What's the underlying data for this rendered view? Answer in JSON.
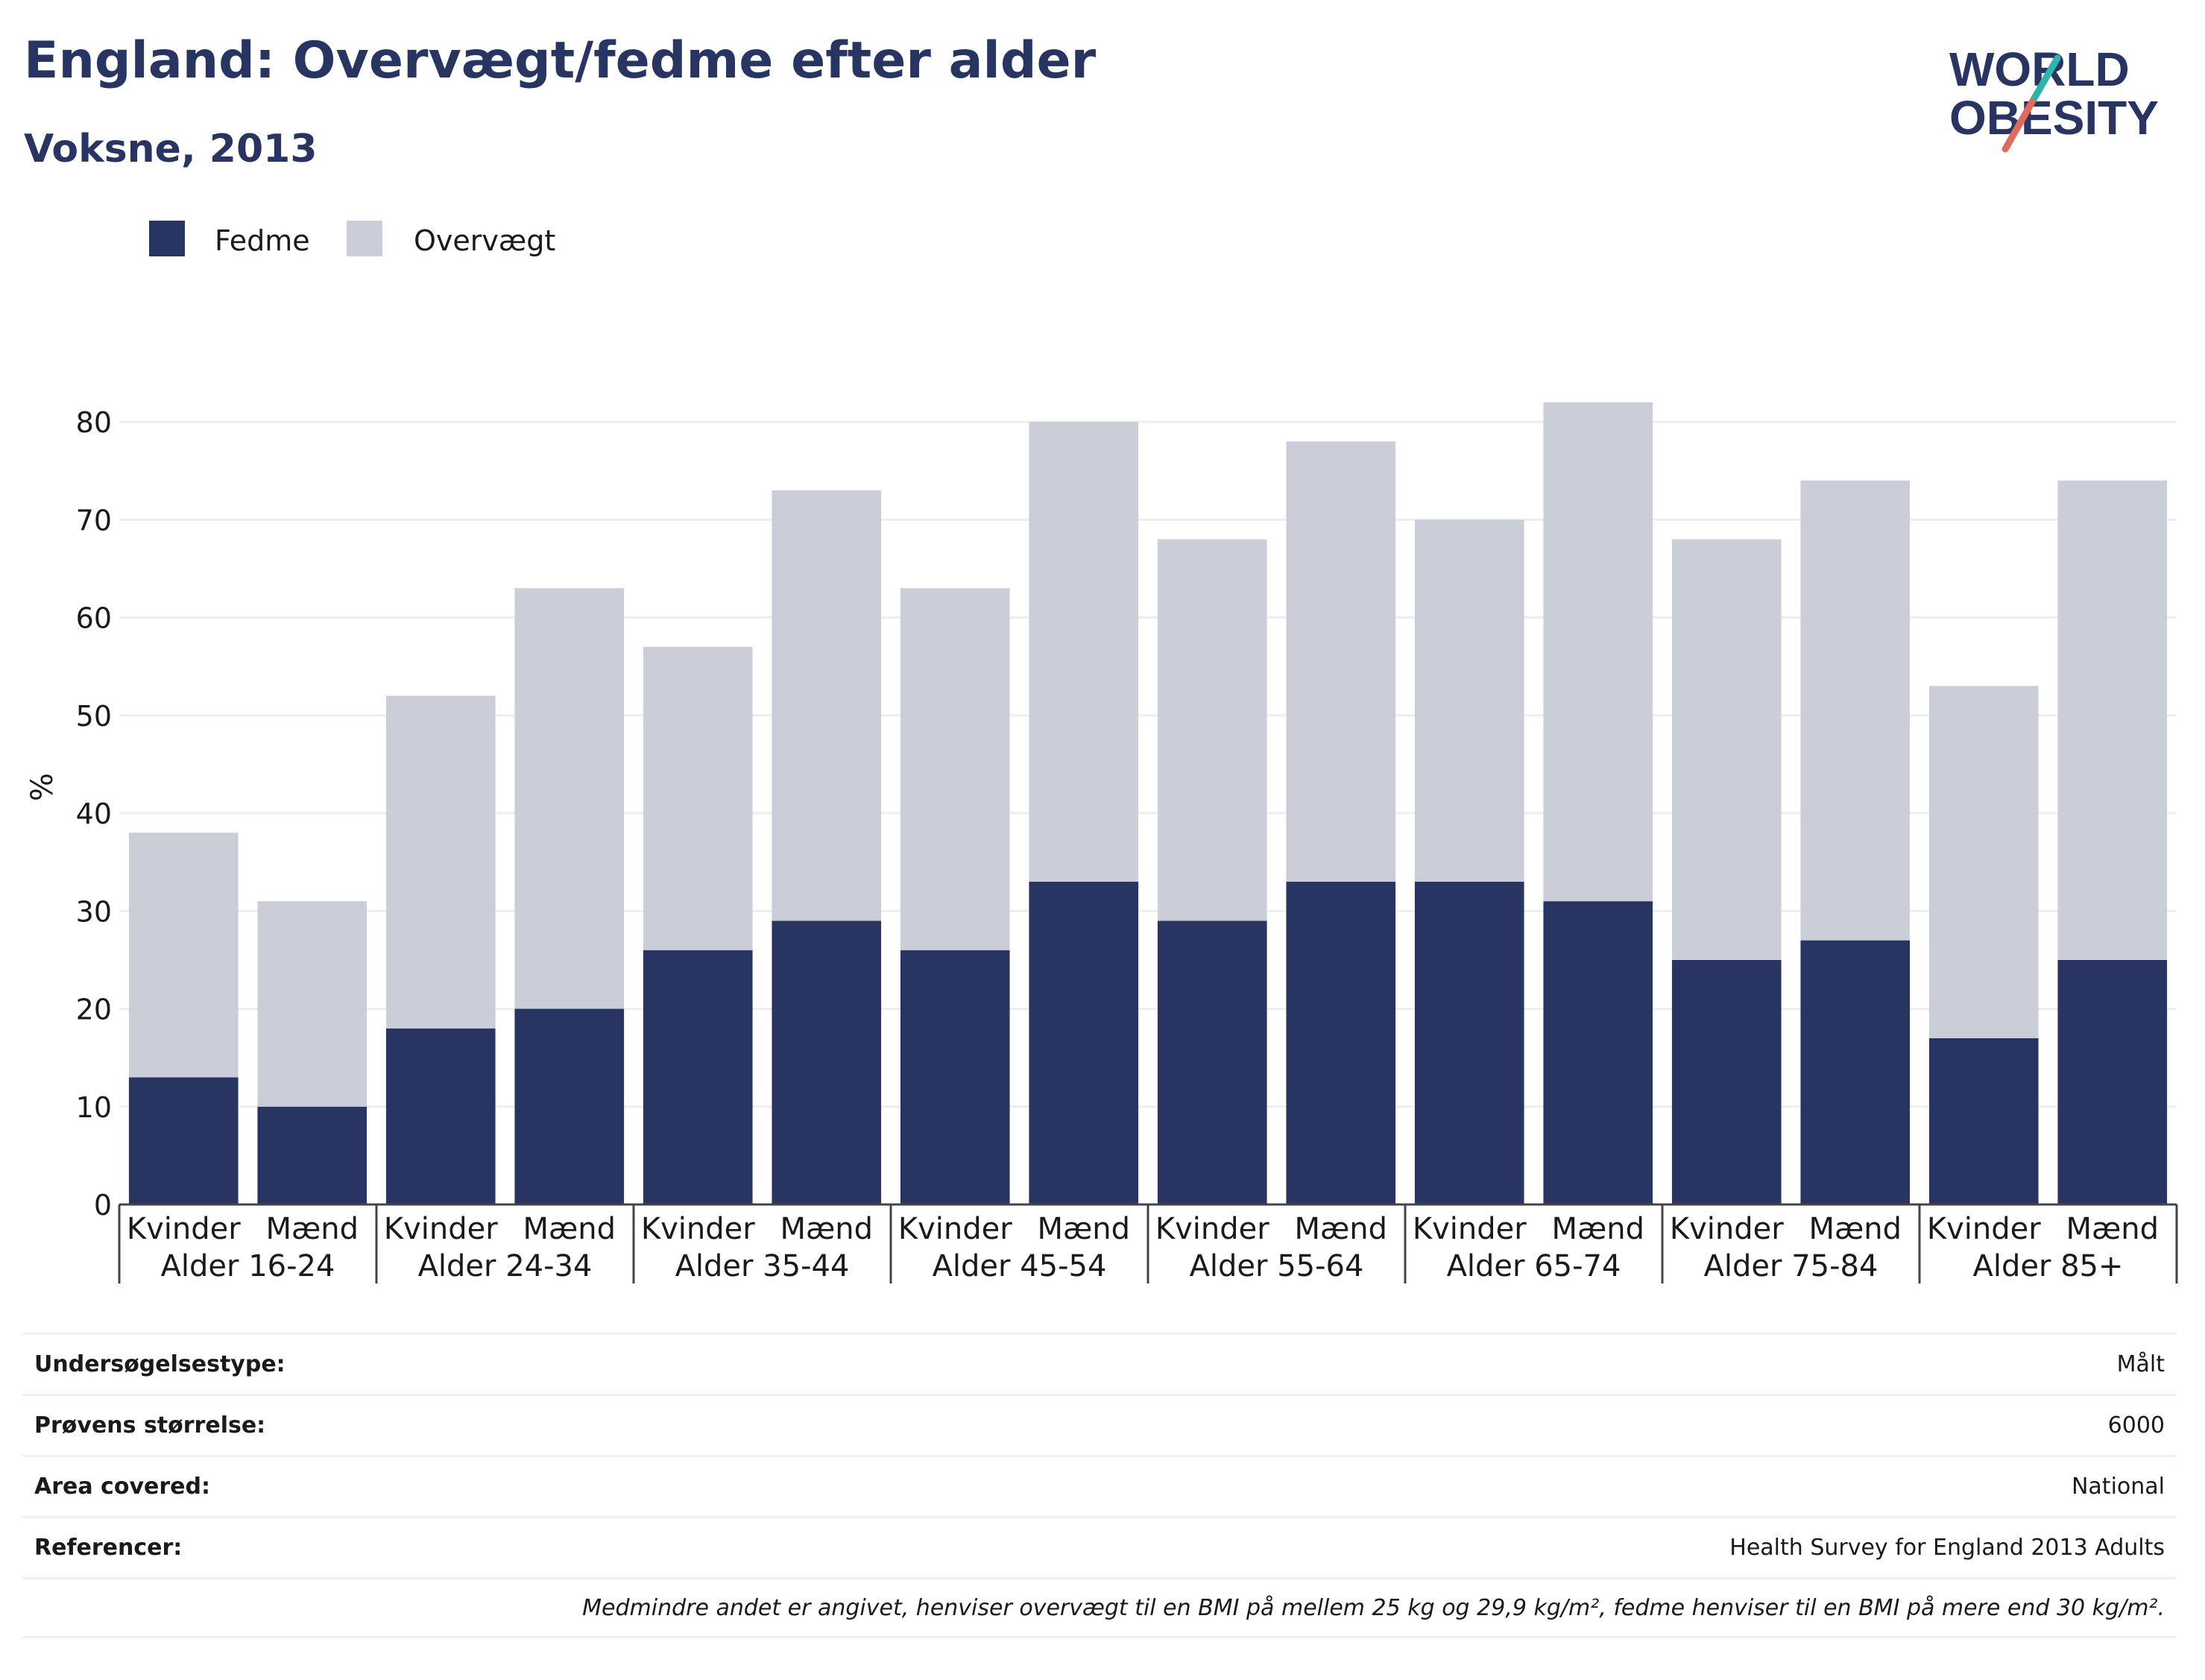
{
  "header": {
    "title": "England: Overvægt/fedme efter alder",
    "subtitle": "Voksne, 2013"
  },
  "logo": {
    "line1": "WORLD",
    "line2": "OBESITY"
  },
  "colors": {
    "fedme": "#283563",
    "overvaegt": "#cbcdd9",
    "text": "#283563",
    "grid": "#eceef4",
    "accent_red": "#e26a5b",
    "accent_teal": "#2bb5ad"
  },
  "chart_data": {
    "type": "bar",
    "stacked": true,
    "ylabel": "%",
    "ylim": [
      0,
      85
    ],
    "yticks": [
      0,
      10,
      20,
      30,
      40,
      50,
      60,
      70,
      80
    ],
    "grid": true,
    "legend_position": "top-left",
    "groups": [
      "Alder 16-24",
      "Alder 24-34",
      "Alder 35-44",
      "Alder 45-54",
      "Alder 55-64",
      "Alder 65-74",
      "Alder 75-84",
      "Alder 85+"
    ],
    "sexes": [
      "Kvinder",
      "Mænd"
    ],
    "categories": [
      "Alder 16-24 Kvinder",
      "Alder 16-24 Mænd",
      "Alder 24-34 Kvinder",
      "Alder 24-34 Mænd",
      "Alder 35-44 Kvinder",
      "Alder 35-44 Mænd",
      "Alder 45-54 Kvinder",
      "Alder 45-54 Mænd",
      "Alder 55-64 Kvinder",
      "Alder 55-64 Mænd",
      "Alder 65-74 Kvinder",
      "Alder 65-74 Mænd",
      "Alder 75-84 Kvinder",
      "Alder 75-84 Mænd",
      "Alder 85+ Kvinder",
      "Alder 85+ Mænd"
    ],
    "series": [
      {
        "name": "Fedme",
        "values": [
          13,
          10,
          18,
          20,
          26,
          29,
          26,
          33,
          29,
          33,
          33,
          31,
          25,
          27,
          17,
          25
        ]
      },
      {
        "name": "Overvægt",
        "values": [
          25,
          21,
          34,
          43,
          31,
          44,
          37,
          47,
          39,
          45,
          37,
          51,
          43,
          47,
          36,
          49
        ]
      }
    ]
  },
  "info": {
    "rows": [
      {
        "label": "Undersøgelsestype:",
        "value": "Målt"
      },
      {
        "label": "Prøvens størrelse:",
        "value": "6000"
      },
      {
        "label": "Area covered:",
        "value": "National"
      },
      {
        "label": "Referencer:",
        "value": "Health Survey for England 2013 Adults"
      }
    ],
    "note": "Medmindre andet er angivet, henviser overvægt til en BMI på mellem 25 kg og 29,9 kg/m², fedme henviser til en BMI på mere end 30 kg/m²."
  }
}
